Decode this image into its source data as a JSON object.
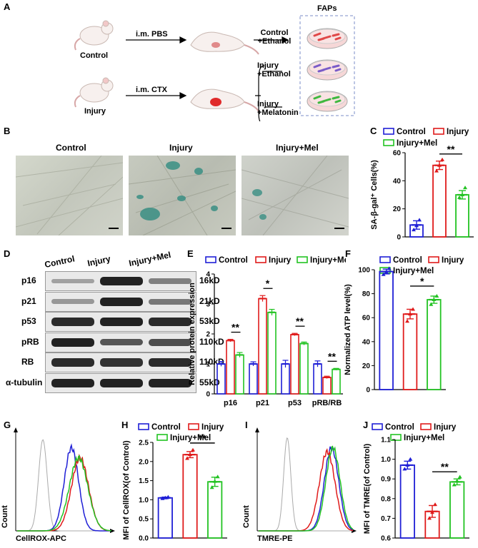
{
  "panel_letters": [
    "A",
    "B",
    "C",
    "D",
    "E",
    "F",
    "G",
    "H",
    "I",
    "J"
  ],
  "schematic": {
    "groups": [
      "Control",
      "Injury"
    ],
    "treatments": [
      "i.m. PBS",
      "i.m. CTX"
    ],
    "outcomes": [
      "Control\n+Ethanol",
      "Injury\n+Ethanol",
      "Injury\n+Melatonin"
    ],
    "faps_label": "FAPs",
    "dish_colors": [
      "#e04848",
      "#7a5cc8",
      "#3fb83f"
    ]
  },
  "micrographs": {
    "labels": [
      "Control",
      "Injury",
      "Injury+Mel"
    ]
  },
  "western": {
    "lane_labels": [
      "Control",
      "Injury",
      "Injury+Mel"
    ],
    "proteins": [
      "p16",
      "p21",
      "p53",
      "pRB",
      "RB",
      "α-tubulin"
    ],
    "sizes": [
      "16kD",
      "21kD",
      "53kD",
      "110kD",
      "110kD",
      "55kD"
    ],
    "intensity": [
      [
        0.25,
        1,
        0.45
      ],
      [
        0.3,
        1,
        0.5
      ],
      [
        0.95,
        1,
        0.95
      ],
      [
        1,
        0.7,
        0.75
      ],
      [
        0.95,
        0.9,
        0.95
      ],
      [
        1,
        1,
        1
      ]
    ]
  },
  "legend_groups": [
    "Control",
    "Injury",
    "Injury+Mel"
  ],
  "colors": {
    "Control": "#1f1fd6",
    "Injury": "#e01b1b",
    "Injury+Mel": "#22c322"
  },
  "chart_data": [
    {
      "panel": "C",
      "type": "bar",
      "ylabel": "SA-β-gal⁺ Cells(%)",
      "ylim": [
        0,
        60
      ],
      "yticks": [
        0,
        20,
        40,
        60
      ],
      "categories": [
        "Control",
        "Injury",
        "Injury+Mel"
      ],
      "values": [
        8.5,
        51,
        30
      ],
      "errors": [
        3,
        3,
        3
      ],
      "points": [
        [
          5,
          8,
          12
        ],
        [
          47,
          51,
          55
        ],
        [
          28,
          30,
          35
        ]
      ],
      "sig": [
        {
          "from": 1,
          "to": 2,
          "label": "**"
        }
      ]
    },
    {
      "panel": "E",
      "type": "bar",
      "ylabel": "Relative protein expression",
      "ylim": [
        0,
        4
      ],
      "yticks": [
        0,
        1,
        2,
        3,
        4
      ],
      "categories": [
        "p16",
        "p21",
        "p53",
        "pRB/RB"
      ],
      "series": [
        {
          "name": "Control",
          "values": [
            1,
            1,
            1,
            1
          ],
          "errors": [
            0.08,
            0.07,
            0.12,
            0.1
          ]
        },
        {
          "name": "Injury",
          "values": [
            1.78,
            3.18,
            1.98,
            0.55
          ],
          "errors": [
            0.04,
            0.1,
            0.04,
            0.04
          ]
        },
        {
          "name": "Injury+Mel",
          "values": [
            1.3,
            2.72,
            1.68,
            0.82
          ],
          "errors": [
            0.08,
            0.1,
            0.05,
            0.03
          ]
        }
      ],
      "sig": [
        "**",
        "*",
        "**",
        "**"
      ]
    },
    {
      "panel": "F",
      "type": "bar",
      "ylabel": "Normalized ATP level(%)",
      "ylim": [
        0,
        100
      ],
      "yticks": [
        0,
        20,
        40,
        60,
        80,
        100
      ],
      "categories": [
        "Control",
        "Injury",
        "Injury+Mel"
      ],
      "values": [
        98.5,
        63,
        75
      ],
      "errors": [
        2,
        4,
        3
      ],
      "points": [
        [
          96,
          98,
          101
        ],
        [
          57,
          63,
          67
        ],
        [
          71,
          75,
          78
        ]
      ],
      "sig": [
        {
          "from": 1,
          "to": 2,
          "label": "*"
        }
      ]
    },
    {
      "panel": "H",
      "type": "bar",
      "ylabel": "MFI of CellROX(of Control)",
      "ylim": [
        0,
        2.5
      ],
      "yticks": [
        0.0,
        0.5,
        1.0,
        1.5,
        2.0,
        2.5
      ],
      "categories": [
        "Control",
        "Injury",
        "Injury+Mel"
      ],
      "values": [
        1.05,
        2.18,
        1.47
      ],
      "errors": [
        0.02,
        0.08,
        0.12
      ],
      "points": [
        [
          1.03,
          1.05,
          1.07
        ],
        [
          2.08,
          2.18,
          2.3
        ],
        [
          1.32,
          1.48,
          1.6
        ]
      ],
      "sig": [
        {
          "from": 1,
          "to": 2,
          "label": "**"
        }
      ]
    },
    {
      "panel": "J",
      "type": "bar",
      "ylabel": "MFI of TMRE(of Control)",
      "ylim": [
        0.6,
        1.1
      ],
      "yticks": [
        0.6,
        0.7,
        0.8,
        0.9,
        1.0,
        1.1
      ],
      "categories": [
        "Control",
        "Injury",
        "Injury+Mel"
      ],
      "values": [
        0.97,
        0.735,
        0.885
      ],
      "errors": [
        0.02,
        0.03,
        0.015
      ],
      "points": [
        [
          0.95,
          0.97,
          1.0
        ],
        [
          0.7,
          0.73,
          0.77
        ],
        [
          0.87,
          0.89,
          0.91
        ]
      ],
      "sig": [
        {
          "from": 1,
          "to": 2,
          "label": "**"
        }
      ]
    },
    {
      "panel": "G",
      "type": "line",
      "xlabel": "CellROX-APC",
      "ylabel": "Count",
      "x_scale": "log",
      "series_colors": [
        "#aaaaaa",
        "#1f1fd6",
        "#e01b1b",
        "#22c322"
      ]
    },
    {
      "panel": "I",
      "type": "line",
      "xlabel": "TMRE-PE",
      "ylabel": "Count",
      "x_scale": "log",
      "series_colors": [
        "#aaaaaa",
        "#1f1fd6",
        "#e01b1b",
        "#22c322"
      ]
    }
  ]
}
